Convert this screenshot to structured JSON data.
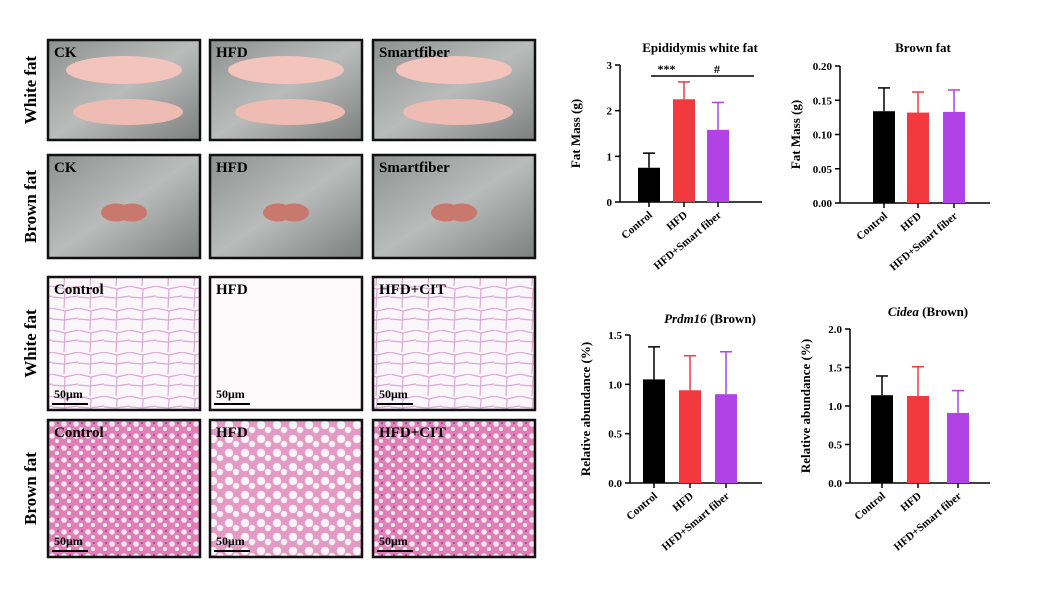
{
  "figure": {
    "rows": [
      {
        "label": "White fat",
        "panels": [
          "CK",
          "HFD",
          "Smartfiber"
        ]
      },
      {
        "label": "Brown fat",
        "panels": [
          "CK",
          "HFD",
          "Smartfiber"
        ]
      },
      {
        "label": "White fat",
        "panels": [
          "Control",
          "HFD",
          "HFD+CIT"
        ]
      },
      {
        "label": "Brown fat",
        "panels": [
          "Control",
          "HFD",
          "HFD+CIT"
        ]
      }
    ],
    "scale_bar": "50μm"
  },
  "chart_data": [
    {
      "type": "bar",
      "title": "Epididymis white fat",
      "ylabel": "Fat Mass (g)",
      "categories": [
        "Control",
        "HFD",
        "HFD+Smart fiber"
      ],
      "values": [
        0.75,
        2.25,
        1.58
      ],
      "errors": [
        0.32,
        0.38,
        0.6
      ],
      "colors": [
        "#000000",
        "#f23a3e",
        "#b143e6"
      ],
      "ylim": [
        0,
        3
      ],
      "yticks": [
        0,
        1,
        2,
        3
      ],
      "annotations": [
        "***",
        "#"
      ]
    },
    {
      "type": "bar",
      "title": "Brown fat",
      "ylabel": "Fat Mass (g)",
      "categories": [
        "Control",
        "HFD",
        "HFD+Smart fiber"
      ],
      "values": [
        0.134,
        0.132,
        0.133
      ],
      "errors": [
        0.034,
        0.03,
        0.032
      ],
      "colors": [
        "#000000",
        "#f23a3e",
        "#b143e6"
      ],
      "ylim": [
        0,
        0.2
      ],
      "yticks": [
        {
          "value": 0,
          "label": "0.00"
        },
        {
          "value": 0.05,
          "label": "0.05"
        },
        {
          "value": 0.1,
          "label": "0.10"
        },
        {
          "value": 0.15,
          "label": "0.15"
        },
        {
          "value": 0.2,
          "label": "0.20"
        }
      ]
    },
    {
      "type": "bar",
      "title": {
        "gene": "Prdm16",
        "rest": "(Brown)"
      },
      "ylabel": "Relative abundance (%)",
      "categories": [
        "Control",
        "HFD",
        "HFD+Smart fiber"
      ],
      "values": [
        1.05,
        0.94,
        0.9
      ],
      "errors": [
        0.33,
        0.35,
        0.43
      ],
      "colors": [
        "#000000",
        "#f23a3e",
        "#b143e6"
      ],
      "ylim": [
        0,
        1.5
      ],
      "yticks": [
        {
          "value": 0,
          "label": "0.0"
        },
        {
          "value": 0.5,
          "label": "0.5"
        },
        {
          "value": 1,
          "label": "1.0"
        },
        {
          "value": 1.5,
          "label": "1.5"
        }
      ]
    },
    {
      "type": "bar",
      "title": {
        "gene": "Cidea",
        "rest": "(Brown)"
      },
      "ylabel": "Relative abundance (%)",
      "categories": [
        "Control",
        "HFD",
        "HFD+Smart fiber"
      ],
      "values": [
        1.14,
        1.13,
        0.91
      ],
      "errors": [
        0.25,
        0.38,
        0.29
      ],
      "colors": [
        "#000000",
        "#f23a3e",
        "#b143e6"
      ],
      "ylim": [
        0,
        2
      ],
      "yticks": [
        {
          "value": 0,
          "label": "0.0"
        },
        {
          "value": 0.5,
          "label": "0.5"
        },
        {
          "value": 1,
          "label": "1.0"
        },
        {
          "value": 1.5,
          "label": "1.5"
        },
        {
          "value": 2,
          "label": "2.0"
        }
      ]
    }
  ]
}
